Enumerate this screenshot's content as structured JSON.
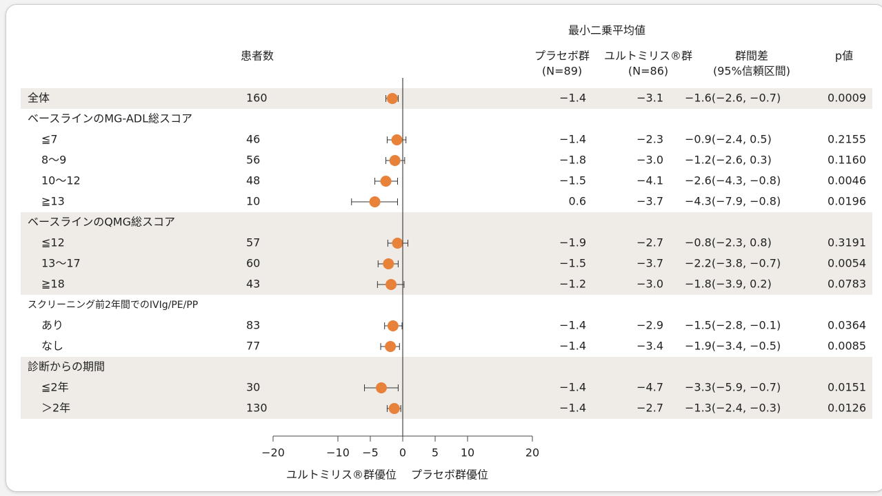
{
  "chart_data": {
    "type": "forest",
    "header": {
      "group_title": "最小二乗平均値",
      "n": "患者数",
      "placebo": "プラセボ群",
      "placebo_n": "(N=89)",
      "ultomiris": "ユルトミリス®群",
      "ultomiris_n": "(N=86)",
      "diff": "群間差",
      "diff_ci": "(95%信頼区間)",
      "p": "p値"
    },
    "rows": [
      {
        "label": "全体",
        "n": 160,
        "diff": -1.6,
        "ci": [
          -2.6,
          -0.7
        ],
        "placebo": "−1.4",
        "ultomiris": "−3.1",
        "diff_label": "−1.6(−2.6, −0.7)",
        "p": "0.0009"
      },
      {
        "label": "ベースラインのMG-ADL総スコア"
      },
      {
        "label": "≦7",
        "n": 46,
        "diff": -0.9,
        "ci": [
          -2.4,
          0.5
        ],
        "placebo": "−1.4",
        "ultomiris": "−2.3",
        "diff_label": "−0.9(−2.4, 0.5)",
        "p": "0.2155"
      },
      {
        "label": "8〜9",
        "n": 56,
        "diff": -1.2,
        "ci": [
          -2.6,
          0.3
        ],
        "placebo": "−1.8",
        "ultomiris": "−3.0",
        "diff_label": "−1.2(−2.6, 0.3)",
        "p": "0.1160"
      },
      {
        "label": "10〜12",
        "n": 48,
        "diff": -2.6,
        "ci": [
          -4.3,
          -0.8
        ],
        "placebo": "−1.5",
        "ultomiris": "−4.1",
        "diff_label": "−2.6(−4.3, −0.8)",
        "p": "0.0046"
      },
      {
        "label": "≧13",
        "n": 10,
        "diff": -4.3,
        "ci": [
          -7.9,
          -0.8
        ],
        "placebo": "0.6",
        "ultomiris": "−3.7",
        "diff_label": "−4.3(−7.9, −0.8)",
        "p": "0.0196"
      },
      {
        "label": "ベースラインのQMG総スコア"
      },
      {
        "label": "≦12",
        "n": 57,
        "diff": -0.8,
        "ci": [
          -2.3,
          0.8
        ],
        "placebo": "−1.9",
        "ultomiris": "−2.7",
        "diff_label": "−0.8(−2.3, 0.8)",
        "p": "0.3191"
      },
      {
        "label": "13〜17",
        "n": 60,
        "diff": -2.2,
        "ci": [
          -3.8,
          -0.7
        ],
        "placebo": "−1.5",
        "ultomiris": "−3.7",
        "diff_label": "−2.2(−3.8, −0.7)",
        "p": "0.0054"
      },
      {
        "label": "≧18",
        "n": 43,
        "diff": -1.8,
        "ci": [
          -3.9,
          0.2
        ],
        "placebo": "−1.2",
        "ultomiris": "−3.0",
        "diff_label": "−1.8(−3.9, 0.2)",
        "p": "0.0783"
      },
      {
        "label": "スクリーニング前2年間でのIVIg/PE/PP"
      },
      {
        "label": "あり",
        "n": 83,
        "diff": -1.5,
        "ci": [
          -2.8,
          -0.1
        ],
        "placebo": "−1.4",
        "ultomiris": "−2.9",
        "diff_label": "−1.5(−2.8, −0.1)",
        "p": "0.0364"
      },
      {
        "label": "なし",
        "n": 77,
        "diff": -1.9,
        "ci": [
          -3.4,
          -0.5
        ],
        "placebo": "−1.4",
        "ultomiris": "−3.4",
        "diff_label": "−1.9(−3.4, −0.5)",
        "p": "0.0085"
      },
      {
        "label": "診断からの期間"
      },
      {
        "label": "≦2年",
        "n": 30,
        "diff": -3.3,
        "ci": [
          -5.9,
          -0.7
        ],
        "placebo": "−1.4",
        "ultomiris": "−4.7",
        "diff_label": "−3.3(−5.9, −0.7)",
        "p": "0.0151"
      },
      {
        "label": "＞2年",
        "n": 130,
        "diff": -1.3,
        "ci": [
          -2.4,
          -0.3
        ],
        "placebo": "−1.4",
        "ultomiris": "−2.7",
        "diff_label": "−1.3(−2.4, −0.3)",
        "p": "0.0126"
      }
    ],
    "color": "#e8813a",
    "xlim": [
      -20,
      20
    ],
    "xticks": [
      {
        "value": -20,
        "label": "−20"
      },
      {
        "value": -10,
        "label": "−10"
      },
      {
        "value": -5,
        "label": "−5"
      },
      0,
      5,
      10,
      20
    ],
    "xlabel_left": "ユルトミリス®群優位",
    "xlabel_right": "プラセボ群優位"
  }
}
